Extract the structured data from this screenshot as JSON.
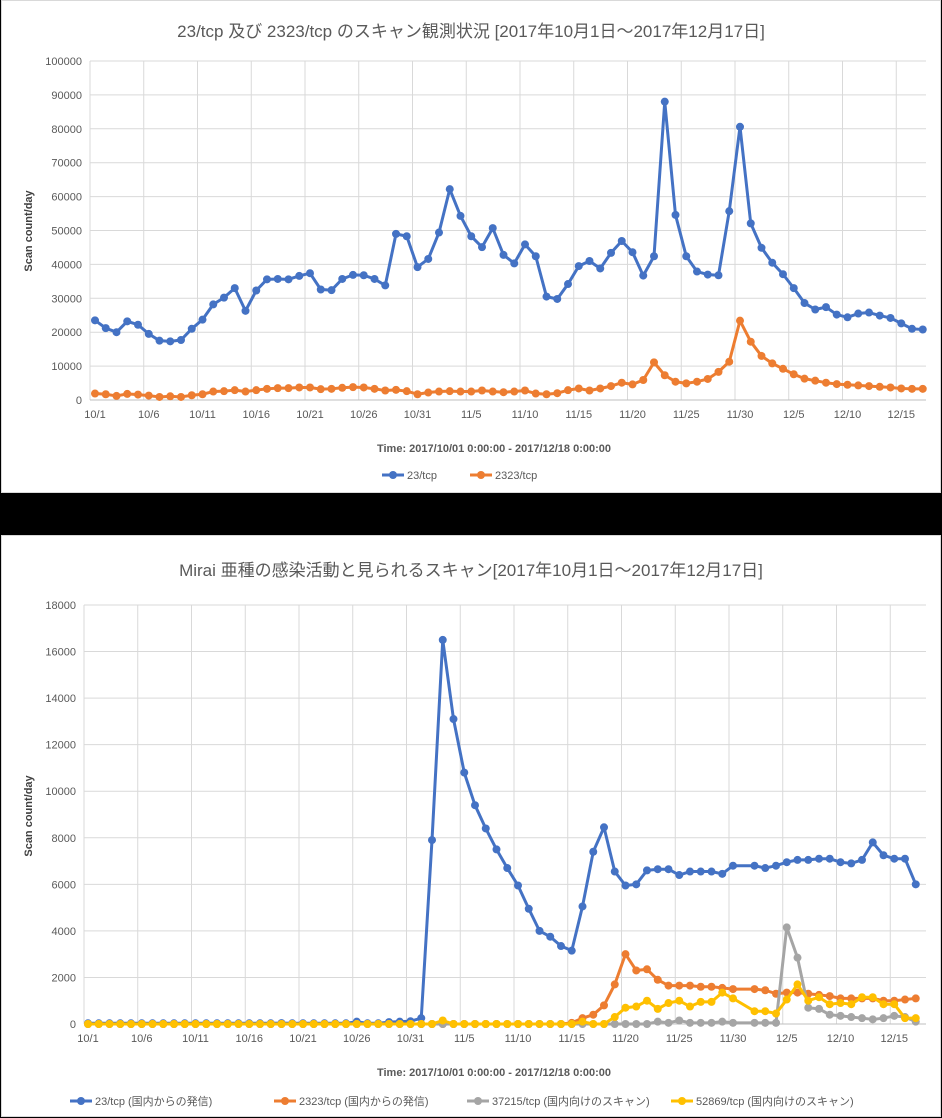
{
  "chart_data": [
    {
      "type": "line",
      "title": "23/tcp 及び 2323/tcp のスキャン観測状況 [2017年10月1日～2017年12月17日]",
      "xlabel": "Time: 2017/10/01 0:00:00 - 2017/12/18 0:00:00",
      "ylabel": "Scan count/day",
      "ylim": [
        0,
        100000
      ],
      "yticks": [
        0,
        10000,
        20000,
        30000,
        40000,
        50000,
        60000,
        70000,
        80000,
        90000,
        100000
      ],
      "xticks": [
        "10/1",
        "10/6",
        "10/11",
        "10/16",
        "10/21",
        "10/26",
        "10/31",
        "11/5",
        "11/10",
        "11/15",
        "11/20",
        "11/25",
        "11/30",
        "12/5",
        "12/10",
        "12/15"
      ],
      "grid": true,
      "legend_position": "bottom",
      "x_start": "10/1",
      "x_count": 78,
      "series": [
        {
          "name": "23/tcp",
          "color": "#4472C4",
          "values": [
            23500,
            21200,
            20000,
            23200,
            22200,
            19500,
            17500,
            17300,
            17700,
            21000,
            23700,
            28200,
            30200,
            33000,
            26300,
            32300,
            35600,
            35700,
            35600,
            36600,
            37400,
            32600,
            32400,
            35700,
            36900,
            36800,
            35700,
            33800,
            49000,
            48300,
            39200,
            41600,
            49400,
            62200,
            54300,
            48300,
            45100,
            50700,
            42800,
            40300,
            45900,
            42400,
            30500,
            29800,
            34200,
            39500,
            41000,
            38800,
            43400,
            46900,
            43600,
            36700,
            42400,
            88000,
            54600,
            42400,
            37900,
            37000,
            36800,
            55700,
            80600,
            52100,
            44900,
            40500,
            37100,
            33000,
            28600,
            26700,
            27400,
            25200,
            24400,
            25500,
            25800,
            24900,
            24200,
            22600,
            21000,
            20800
          ]
        },
        {
          "name": "2323/tcp",
          "color": "#ED7D31",
          "values": [
            1900,
            1700,
            1200,
            1800,
            1600,
            1300,
            900,
            1100,
            900,
            1400,
            1700,
            2500,
            2600,
            2900,
            2500,
            2900,
            3300,
            3500,
            3500,
            3700,
            3700,
            3200,
            3300,
            3600,
            3800,
            3700,
            3300,
            2800,
            3000,
            2600,
            1700,
            2200,
            2500,
            2600,
            2500,
            2500,
            2800,
            2500,
            2300,
            2500,
            2800,
            1900,
            1700,
            2000,
            2900,
            3400,
            2800,
            3400,
            4100,
            5100,
            4600,
            5900,
            11100,
            7300,
            5400,
            4900,
            5400,
            6200,
            8300,
            11300,
            23400,
            17200,
            13000,
            10800,
            9200,
            7600,
            6300,
            5700,
            5100,
            4700,
            4500,
            4300,
            4100,
            3900,
            3700,
            3400,
            3300,
            3300
          ]
        }
      ]
    },
    {
      "type": "line",
      "title": "Mirai 亜種の感染活動と見られるスキャン[2017年10月1日～2017年12月17日]",
      "xlabel": "Time: 2017/10/01 0:00:00 - 2017/12/18 0:00:00",
      "ylabel": "Scan count/day",
      "ylim": [
        0,
        18000
      ],
      "yticks": [
        0,
        2000,
        4000,
        6000,
        8000,
        10000,
        12000,
        14000,
        16000,
        18000
      ],
      "xticks": [
        "10/1",
        "10/6",
        "10/11",
        "10/16",
        "10/21",
        "10/26",
        "10/31",
        "11/5",
        "11/10",
        "11/15",
        "11/20",
        "11/25",
        "11/30",
        "12/5",
        "12/10",
        "12/15"
      ],
      "grid": true,
      "legend_position": "bottom",
      "x_start": "10/1",
      "x_count": 78,
      "series": [
        {
          "name": "23/tcp (国内からの発信)",
          "color": "#4472C4",
          "values": [
            30,
            30,
            30,
            30,
            30,
            30,
            30,
            30,
            30,
            30,
            30,
            30,
            30,
            30,
            30,
            30,
            30,
            30,
            40,
            30,
            30,
            30,
            30,
            30,
            30,
            100,
            30,
            30,
            80,
            100,
            120,
            250,
            7900,
            16500,
            13100,
            10800,
            9400,
            8400,
            7500,
            6700,
            5950,
            4950,
            4000,
            3750,
            3350,
            3150,
            5050,
            7400,
            8450,
            6550,
            5950,
            6000,
            6600,
            6650,
            6650,
            6400,
            6550,
            6550,
            6550,
            6450,
            6800,
            null,
            6800,
            6700,
            6800,
            6950,
            7050,
            7050,
            7100,
            7100,
            6950,
            6900,
            7050,
            7800,
            7250,
            7100,
            7100,
            6000
          ]
        },
        {
          "name": "2323/tcp (国内からの発信)",
          "color": "#ED7D31",
          "values": [
            0,
            0,
            0,
            0,
            0,
            0,
            0,
            0,
            0,
            0,
            0,
            0,
            0,
            0,
            0,
            0,
            0,
            0,
            0,
            0,
            0,
            0,
            0,
            0,
            0,
            0,
            0,
            0,
            0,
            0,
            0,
            0,
            0,
            0,
            0,
            0,
            0,
            0,
            0,
            0,
            0,
            0,
            0,
            0,
            0,
            50,
            250,
            400,
            800,
            1700,
            3000,
            2300,
            2350,
            1900,
            1650,
            1650,
            1650,
            1600,
            1600,
            1550,
            1500,
            null,
            1500,
            1450,
            1300,
            1350,
            1350,
            1300,
            1250,
            1200,
            1100,
            1100,
            1100,
            1100,
            1000,
            1000,
            1050,
            1100
          ]
        },
        {
          "name": "37215/tcp (国内向けのスキャン)",
          "color": "#A5A5A5",
          "values": [
            0,
            0,
            0,
            0,
            0,
            0,
            0,
            0,
            0,
            0,
            0,
            0,
            0,
            0,
            0,
            0,
            0,
            0,
            0,
            0,
            0,
            0,
            0,
            0,
            0,
            0,
            0,
            0,
            0,
            0,
            0,
            0,
            0,
            0,
            0,
            0,
            0,
            0,
            0,
            0,
            0,
            0,
            0,
            0,
            0,
            0,
            0,
            0,
            0,
            0,
            0,
            0,
            0,
            100,
            50,
            150,
            50,
            50,
            50,
            100,
            50,
            null,
            50,
            50,
            50,
            4150,
            2850,
            700,
            650,
            400,
            350,
            300,
            250,
            200,
            250,
            350,
            300,
            100
          ]
        },
        {
          "name": "52869/tcp (国内向けのスキャン)",
          "color": "#FFC000",
          "values": [
            0,
            0,
            0,
            0,
            0,
            0,
            0,
            0,
            0,
            0,
            0,
            0,
            0,
            0,
            0,
            0,
            0,
            0,
            0,
            0,
            0,
            0,
            0,
            0,
            0,
            0,
            0,
            0,
            0,
            0,
            0,
            0,
            0,
            150,
            0,
            0,
            0,
            0,
            0,
            0,
            0,
            0,
            0,
            0,
            0,
            0,
            100,
            0,
            0,
            300,
            700,
            750,
            1000,
            650,
            900,
            1000,
            750,
            950,
            950,
            1350,
            1100,
            null,
            550,
            550,
            450,
            1050,
            1700,
            1000,
            1150,
            850,
            900,
            850,
            1150,
            1150,
            850,
            850,
            250,
            250
          ]
        }
      ]
    }
  ],
  "chart1": {
    "title": "23/tcp 及び 2323/tcp のスキャン観測状況 [2017年10月1日～2017年12月17日]",
    "ylabel": "Scan count/day",
    "xlabel": "Time: 2017/10/01 0:00:00 - 2017/12/18 0:00:00",
    "legend": [
      "23/tcp",
      "2323/tcp"
    ]
  },
  "chart2": {
    "title": "Mirai 亜種の感染活動と見られるスキャン[2017年10月1日～2017年12月17日]",
    "ylabel": "Scan count/day",
    "xlabel": "Time: 2017/10/01 0:00:00 - 2017/12/18 0:00:00",
    "legend": [
      "23/tcp (国内からの発信)",
      "2323/tcp (国内からの発信)",
      "37215/tcp (国内向けのスキャン)",
      "52869/tcp (国内向けのスキャン)"
    ]
  }
}
